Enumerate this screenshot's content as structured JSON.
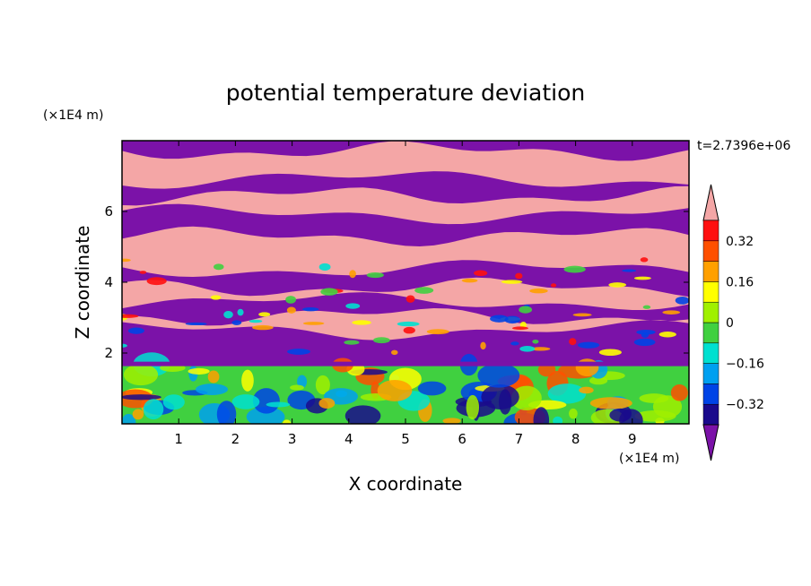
{
  "chart_data": {
    "type": "heatmap",
    "title": "potential temperature deviation",
    "xlabel": "X coordinate",
    "ylabel": "Z coordinate",
    "x_unit": "(×1E4 m)",
    "y_unit": "(×1E4 m)",
    "time_label": "t=2.7396e+06",
    "xlim": [
      0,
      10
    ],
    "ylim": [
      0,
      8
    ],
    "x_ticks": [
      "1",
      "2",
      "3",
      "4",
      "5",
      "6",
      "7",
      "8",
      "9"
    ],
    "y_ticks": [
      "2",
      "4",
      "6"
    ],
    "colorbar": {
      "tick_labels": [
        "0.32",
        "0.16",
        "0",
        "-0.16",
        "-0.32"
      ],
      "levels": [
        -0.4,
        -0.32,
        -0.24,
        -0.16,
        -0.08,
        0,
        0.08,
        0.16,
        0.24,
        0.32,
        0.4
      ],
      "bin_colors": [
        "#1a0a8c",
        "#0044e6",
        "#00a0f0",
        "#00e0d0",
        "#40d040",
        "#a0f000",
        "#ffff00",
        "#ffa000",
        "#ff5000",
        "#ff1010"
      ],
      "under_color": "#7b12a8",
      "over_color": "#f4a6a6"
    }
  }
}
